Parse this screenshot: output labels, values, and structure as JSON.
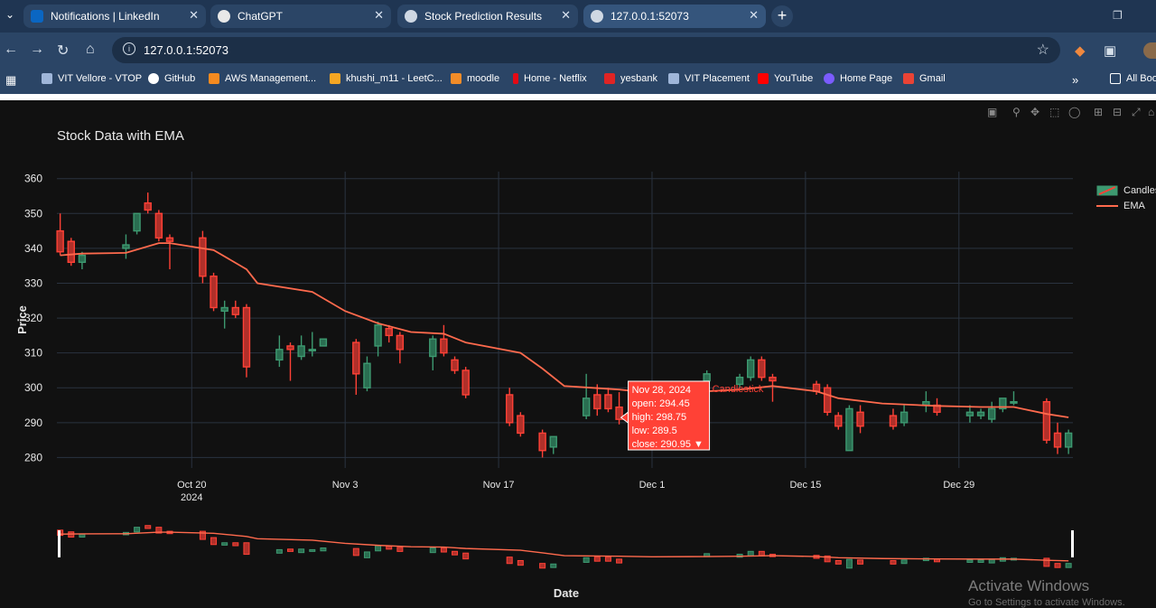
{
  "browser": {
    "tabs": [
      {
        "label": "Notifications | LinkedIn",
        "color": "#0a66c2"
      },
      {
        "label": "ChatGPT",
        "color": "#ffffff"
      },
      {
        "label": "Stock Prediction Results",
        "color": "#cfd8e3"
      },
      {
        "label": "127.0.0.1:52073",
        "color": "#cfd8e3"
      }
    ],
    "address": "127.0.0.1:52073",
    "bookmarks": [
      {
        "label": "VIT Vellore - VTOP",
        "color": "#9fb6d9"
      },
      {
        "label": "GitHub",
        "color": "#ffffff"
      },
      {
        "label": "AWS Management...",
        "color": "#f58a1f"
      },
      {
        "label": "khushi_m11 - LeetC...",
        "color": "#f5a623"
      },
      {
        "label": "moodle",
        "color": "#f28c28"
      },
      {
        "label": "Home - Netflix",
        "color": "#e50914"
      },
      {
        "label": "yesbank",
        "color": "#e02424"
      },
      {
        "label": "VIT Placement",
        "color": "#9fb6d9"
      },
      {
        "label": "YouTube",
        "color": "#ff0000"
      },
      {
        "label": "Home Page",
        "color": "#7b5cff"
      },
      {
        "label": "Gmail",
        "color": "#ea4335"
      }
    ],
    "all_bookmarks": "All Boo"
  },
  "chart_data": {
    "type": "candlestick",
    "title": "Stock Data with EMA",
    "xlabel": "Date",
    "ylabel": "Price",
    "ylim": [
      277,
      362
    ],
    "x_range": [
      "2024-10-08",
      "2025-01-07"
    ],
    "yticks": [
      280,
      290,
      300,
      310,
      320,
      330,
      340,
      350,
      360
    ],
    "xticks": [
      {
        "date": "2024-10-20",
        "label": "Oct 20",
        "sub": "2024"
      },
      {
        "date": "2024-11-03",
        "label": "Nov 3",
        "sub": ""
      },
      {
        "date": "2024-11-17",
        "label": "Nov 17",
        "sub": ""
      },
      {
        "date": "2024-12-01",
        "label": "Dec 1",
        "sub": ""
      },
      {
        "date": "2024-12-15",
        "label": "Dec 15",
        "sub": ""
      },
      {
        "date": "2024-12-29",
        "label": "Dec 29",
        "sub": ""
      }
    ],
    "grid": true,
    "legend_position": "top-right",
    "colors": {
      "increasing": "#3d9970",
      "decreasing": "#ff4136",
      "ema": "#ff6a4d"
    },
    "series": [
      {
        "name": "Candlestick",
        "ohlc": [
          {
            "date": "2024-10-08",
            "open": 345,
            "high": 350,
            "low": 338,
            "close": 339
          },
          {
            "date": "2024-10-09",
            "open": 342,
            "high": 343,
            "low": 335,
            "close": 336
          },
          {
            "date": "2024-10-10",
            "open": 336,
            "high": 339,
            "low": 334,
            "close": 338
          },
          {
            "date": "2024-10-14",
            "open": 340,
            "high": 344,
            "low": 337,
            "close": 341
          },
          {
            "date": "2024-10-15",
            "open": 345,
            "high": 350,
            "low": 344,
            "close": 350
          },
          {
            "date": "2024-10-16",
            "open": 353,
            "high": 356,
            "low": 350,
            "close": 351
          },
          {
            "date": "2024-10-17",
            "open": 350,
            "high": 351,
            "low": 342,
            "close": 343
          },
          {
            "date": "2024-10-18",
            "open": 343,
            "high": 344,
            "low": 334,
            "close": 342
          },
          {
            "date": "2024-10-21",
            "open": 343,
            "high": 345,
            "low": 330,
            "close": 332
          },
          {
            "date": "2024-10-22",
            "open": 332,
            "high": 333,
            "low": 322,
            "close": 323
          },
          {
            "date": "2024-10-23",
            "open": 322,
            "high": 325,
            "low": 317,
            "close": 323
          },
          {
            "date": "2024-10-24",
            "open": 323,
            "high": 325,
            "low": 320,
            "close": 321
          },
          {
            "date": "2024-10-25",
            "open": 323,
            "high": 324,
            "low": 303,
            "close": 306
          },
          {
            "date": "2024-10-28",
            "open": 308,
            "high": 315,
            "low": 306,
            "close": 311
          },
          {
            "date": "2024-10-29",
            "open": 312,
            "high": 313,
            "low": 302,
            "close": 311
          },
          {
            "date": "2024-10-30",
            "open": 309,
            "high": 315,
            "low": 308,
            "close": 312
          },
          {
            "date": "2024-10-31",
            "open": 311,
            "high": 316,
            "low": 309,
            "close": 311
          },
          {
            "date": "2024-11-01",
            "open": 312,
            "high": 314,
            "low": 312,
            "close": 314
          },
          {
            "date": "2024-11-04",
            "open": 313,
            "high": 314,
            "low": 298,
            "close": 304
          },
          {
            "date": "2024-11-05",
            "open": 300,
            "high": 309,
            "low": 299,
            "close": 307
          },
          {
            "date": "2024-11-06",
            "open": 312,
            "high": 319,
            "low": 309,
            "close": 318
          },
          {
            "date": "2024-11-07",
            "open": 317,
            "high": 318,
            "low": 313,
            "close": 315
          },
          {
            "date": "2024-11-08",
            "open": 315,
            "high": 316,
            "low": 307,
            "close": 311
          },
          {
            "date": "2024-11-11",
            "open": 309,
            "high": 315,
            "low": 305,
            "close": 314
          },
          {
            "date": "2024-11-12",
            "open": 314,
            "high": 318,
            "low": 309,
            "close": 310
          },
          {
            "date": "2024-11-13",
            "open": 308,
            "high": 309,
            "low": 304,
            "close": 305
          },
          {
            "date": "2024-11-14",
            "open": 305,
            "high": 306,
            "low": 297,
            "close": 298
          },
          {
            "date": "2024-11-18",
            "open": 298,
            "high": 300,
            "low": 289,
            "close": 290
          },
          {
            "date": "2024-11-19",
            "open": 292,
            "high": 293,
            "low": 286,
            "close": 287
          },
          {
            "date": "2024-11-21",
            "open": 287,
            "high": 288,
            "low": 280,
            "close": 282
          },
          {
            "date": "2024-11-22",
            "open": 283,
            "high": 286,
            "low": 281,
            "close": 286
          },
          {
            "date": "2024-11-25",
            "open": 292,
            "high": 304,
            "low": 291,
            "close": 297
          },
          {
            "date": "2024-11-26",
            "open": 298,
            "high": 301,
            "low": 292,
            "close": 294
          },
          {
            "date": "2024-11-27",
            "open": 298,
            "high": 300,
            "low": 293,
            "close": 294
          },
          {
            "date": "2024-11-28",
            "open": 294.45,
            "high": 298.75,
            "low": 289.5,
            "close": 290.95
          },
          {
            "date": "2024-12-06",
            "open": 302,
            "high": 305,
            "low": 300,
            "close": 304
          },
          {
            "date": "2024-12-09",
            "open": 301,
            "high": 304,
            "low": 300,
            "close": 303
          },
          {
            "date": "2024-12-10",
            "open": 303,
            "high": 309,
            "low": 302,
            "close": 308
          },
          {
            "date": "2024-12-11",
            "open": 308,
            "high": 309,
            "low": 302,
            "close": 303
          },
          {
            "date": "2024-12-12",
            "open": 303,
            "high": 304,
            "low": 296,
            "close": 302
          },
          {
            "date": "2024-12-16",
            "open": 301,
            "high": 302,
            "low": 298,
            "close": 299
          },
          {
            "date": "2024-12-17",
            "open": 300,
            "high": 301,
            "low": 292,
            "close": 293
          },
          {
            "date": "2024-12-18",
            "open": 292,
            "high": 293,
            "low": 288,
            "close": 289
          },
          {
            "date": "2024-12-19",
            "open": 282,
            "high": 295,
            "low": 282,
            "close": 294
          },
          {
            "date": "2024-12-20",
            "open": 293,
            "high": 295,
            "low": 287,
            "close": 289
          },
          {
            "date": "2024-12-23",
            "open": 292,
            "high": 294,
            "low": 288,
            "close": 289
          },
          {
            "date": "2024-12-24",
            "open": 290,
            "high": 295,
            "low": 289,
            "close": 293
          },
          {
            "date": "2024-12-26",
            "open": 295,
            "high": 299,
            "low": 293,
            "close": 296
          },
          {
            "date": "2024-12-27",
            "open": 295,
            "high": 297,
            "low": 292,
            "close": 293
          },
          {
            "date": "2024-12-30",
            "open": 292,
            "high": 295,
            "low": 290,
            "close": 293
          },
          {
            "date": "2024-12-31",
            "open": 292,
            "high": 294,
            "low": 291,
            "close": 293
          },
          {
            "date": "2025-01-01",
            "open": 291,
            "high": 296,
            "low": 290,
            "close": 294
          },
          {
            "date": "2025-01-02",
            "open": 294,
            "high": 297,
            "low": 293,
            "close": 297
          },
          {
            "date": "2025-01-03",
            "open": 296,
            "high": 299,
            "low": 295,
            "close": 296
          },
          {
            "date": "2025-01-06",
            "open": 296,
            "high": 297,
            "low": 284,
            "close": 285
          },
          {
            "date": "2025-01-07",
            "open": 287,
            "high": 290,
            "low": 281,
            "close": 283
          },
          {
            "date": "2025-01-08",
            "open": 283,
            "high": 288,
            "low": 281,
            "close": 287
          }
        ]
      },
      {
        "name": "EMA",
        "points": [
          [
            "2024-10-08",
            338
          ],
          [
            "2024-10-10",
            338.5
          ],
          [
            "2024-10-14",
            338.7
          ],
          [
            "2024-10-17",
            341.5
          ],
          [
            "2024-10-18",
            341.5
          ],
          [
            "2024-10-22",
            339.5
          ],
          [
            "2024-10-25",
            334
          ],
          [
            "2024-10-26",
            330
          ],
          [
            "2024-10-31",
            327.5
          ],
          [
            "2024-11-03",
            322
          ],
          [
            "2024-11-06",
            318.5
          ],
          [
            "2024-11-09",
            316
          ],
          [
            "2024-11-12",
            315.5
          ],
          [
            "2024-11-14",
            313
          ],
          [
            "2024-11-19",
            310
          ],
          [
            "2024-11-21",
            305.5
          ],
          [
            "2024-11-23",
            300.5
          ],
          [
            "2024-11-28",
            299.5
          ],
          [
            "2024-12-01",
            298.5
          ],
          [
            "2024-12-06",
            299
          ],
          [
            "2024-12-09",
            299.5
          ],
          [
            "2024-12-12",
            300.5
          ],
          [
            "2024-12-16",
            299
          ],
          [
            "2024-12-18",
            297
          ],
          [
            "2024-12-22",
            295.5
          ],
          [
            "2024-12-27",
            294.8
          ],
          [
            "2024-12-31",
            294.5
          ],
          [
            "2025-01-03",
            294.5
          ],
          [
            "2025-01-06",
            292.5
          ],
          [
            "2025-01-08",
            291.5
          ]
        ]
      }
    ],
    "hover": {
      "date": "Nov 28, 2024",
      "open": "open: 294.45",
      "high": "high: 298.75",
      "low": "low: 289.5",
      "close": "close: 290.95",
      "trace": "Candlestick"
    }
  },
  "watermark": {
    "line1": "Activate Windows",
    "line2": "Go to Settings to activate Windows."
  }
}
